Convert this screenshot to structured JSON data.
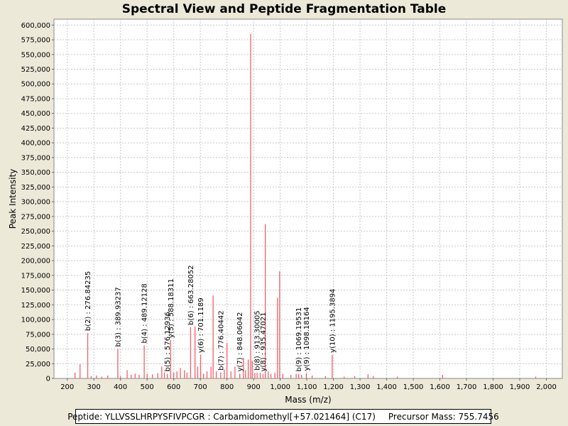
{
  "window": {
    "title": "Spectral View and Peptide Fragmentation Table"
  },
  "footer": {
    "peptide_text": "Peptide: YLLVSSLHRPYSFIVPCGR : Carbamidomethyl[+57.021464] (C17)",
    "precursor_text": "Precursor Mass: 755.7456"
  },
  "colors": {
    "peak": "#F0606A",
    "plot_bg": "#FFFFFF",
    "grid": "#C8C8C8",
    "frame": "#ECE9D8"
  },
  "chart_data": {
    "type": "bar",
    "title": "Spectral View and Peptide Fragmentation Table",
    "xlabel": "Mass (m/z)",
    "ylabel": "Peak Intensity",
    "xlim": [
      150,
      2060
    ],
    "ylim": [
      0,
      610000
    ],
    "grid": true,
    "x_ticks": [
      200,
      300,
      400,
      500,
      600,
      700,
      800,
      900,
      1000,
      1100,
      1200,
      1300,
      1400,
      1500,
      1600,
      1700,
      1800,
      1900,
      2000
    ],
    "x_tick_labels": [
      "200",
      "300",
      "400",
      "500",
      "600",
      "700",
      "800",
      "900",
      "1,000",
      "1,100",
      "1,200",
      "1,300",
      "1,400",
      "1,500",
      "1,600",
      "1,700",
      "1,800",
      "1,900",
      "2,000"
    ],
    "y_ticks": [
      0,
      25000,
      50000,
      75000,
      100000,
      125000,
      150000,
      175000,
      200000,
      225000,
      250000,
      275000,
      300000,
      325000,
      350000,
      375000,
      400000,
      425000,
      450000,
      475000,
      500000,
      525000,
      550000,
      575000,
      600000
    ],
    "y_tick_labels": [
      "0",
      "25,000",
      "50,000",
      "75,000",
      "100,000",
      "125,000",
      "150,000",
      "175,000",
      "200,000",
      "225,000",
      "250,000",
      "275,000",
      "300,000",
      "325,000",
      "350,000",
      "375,000",
      "400,000",
      "425,000",
      "450,000",
      "475,000",
      "500,000",
      "525,000",
      "550,000",
      "575,000",
      "600,000"
    ],
    "peaks": [
      [
        229,
        10000
      ],
      [
        248,
        24000
      ],
      [
        276.84,
        77000
      ],
      [
        290,
        4000
      ],
      [
        310,
        5000
      ],
      [
        330,
        3000
      ],
      [
        352,
        5000
      ],
      [
        389.93,
        50000
      ],
      [
        400,
        4000
      ],
      [
        425,
        14000
      ],
      [
        440,
        6000
      ],
      [
        455,
        8000
      ],
      [
        470,
        6000
      ],
      [
        489.12,
        56000
      ],
      [
        500,
        8000
      ],
      [
        520,
        7000
      ],
      [
        540,
        9000
      ],
      [
        555,
        20000
      ],
      [
        565,
        10000
      ],
      [
        576.13,
        8000
      ],
      [
        588.18,
        65000
      ],
      [
        600,
        10000
      ],
      [
        612,
        12000
      ],
      [
        625,
        18000
      ],
      [
        640,
        14000
      ],
      [
        650,
        10000
      ],
      [
        663.28,
        87000
      ],
      [
        680,
        88000
      ],
      [
        690,
        20000
      ],
      [
        701.12,
        40000
      ],
      [
        712,
        8000
      ],
      [
        725,
        12000
      ],
      [
        740,
        20000
      ],
      [
        748,
        141000
      ],
      [
        760,
        12000
      ],
      [
        776.4,
        10000
      ],
      [
        790,
        15000
      ],
      [
        800,
        60000
      ],
      [
        815,
        12000
      ],
      [
        830,
        20000
      ],
      [
        848.06,
        8000
      ],
      [
        862,
        35000
      ],
      [
        870,
        14000
      ],
      [
        880,
        32000
      ],
      [
        889,
        585000
      ],
      [
        895,
        30000
      ],
      [
        905,
        9000
      ],
      [
        913.3,
        10000
      ],
      [
        925,
        10000
      ],
      [
        935.47,
        8000
      ],
      [
        944,
        262000
      ],
      [
        955,
        12000
      ],
      [
        965,
        8000
      ],
      [
        980,
        10000
      ],
      [
        990,
        137000
      ],
      [
        998,
        182000
      ],
      [
        1010,
        8000
      ],
      [
        1040,
        6000
      ],
      [
        1060,
        8000
      ],
      [
        1069.2,
        8000
      ],
      [
        1080,
        6000
      ],
      [
        1098.19,
        9000
      ],
      [
        1120,
        5000
      ],
      [
        1170,
        4000
      ],
      [
        1195.39,
        40000
      ],
      [
        1240,
        3000
      ],
      [
        1280,
        4000
      ],
      [
        1330,
        7000
      ],
      [
        1350,
        4000
      ],
      [
        1440,
        3000
      ],
      [
        1610,
        6000
      ],
      [
        1960,
        3000
      ]
    ],
    "annotations": [
      {
        "label": "b(2) : 276.84235",
        "mz": 276.84235,
        "intensity": 77000
      },
      {
        "label": "b(3) : 389.93237",
        "mz": 389.93237,
        "intensity": 50000
      },
      {
        "label": "b(4) : 489.12128",
        "mz": 489.12128,
        "intensity": 56000
      },
      {
        "label": "b(5) : 576.12936",
        "mz": 576.12936,
        "intensity": 8000
      },
      {
        "label": "y(5) : 588.18311",
        "mz": 588.18311,
        "intensity": 65000
      },
      {
        "label": "b(6) : 663.28052",
        "mz": 663.28052,
        "intensity": 87000
      },
      {
        "label": "y(6) : 701.1189",
        "mz": 701.1189,
        "intensity": 40000
      },
      {
        "label": "b(7) : 776.40442",
        "mz": 776.40442,
        "intensity": 10000
      },
      {
        "label": "y(7) : 848.06042",
        "mz": 848.06042,
        "intensity": 8000
      },
      {
        "label": "b(8) : 913.30005",
        "mz": 913.30005,
        "intensity": 10000
      },
      {
        "label": "y(8) : 935.47021",
        "mz": 935.47021,
        "intensity": 8000
      },
      {
        "label": "b(9) : 1069.19531",
        "mz": 1069.19531,
        "intensity": 8000
      },
      {
        "label": "y(9) : 1098.18164",
        "mz": 1098.18164,
        "intensity": 9000
      },
      {
        "label": "y(10) : 1195.3894",
        "mz": 1195.3894,
        "intensity": 40000
      }
    ]
  }
}
